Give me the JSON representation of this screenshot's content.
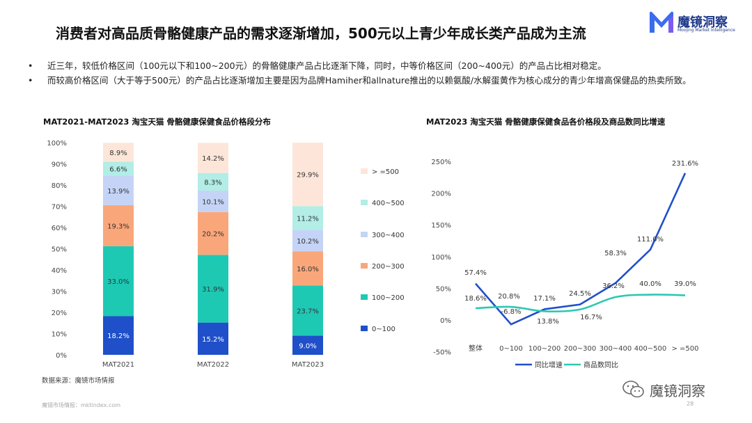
{
  "header": {
    "title": "消费者对高品质骨骼健康产品的需求逐渐增加，500元以上青少年成长类产品成为主流",
    "logo_cn": "魔镜洞察",
    "logo_en": "Moojing Market Intelligence"
  },
  "bullets": [
    "近三年，较低价格区间（100元以下和100~200元）的骨骼健康产品占比逐渐下降，同时，中等价格区间（200~400元）的产品占比相对稳定。",
    "而较高价格区间（大于等于500元）的产品占比逐渐增加主要是因为品牌Hamiher和allnature推出的以赖氨酸/水解蛋黄作为核心成分的青少年增高保健品的热卖所致。"
  ],
  "bullet_mark": "•",
  "source": "数据来源：魔镜市场情报",
  "footer": "魔镜市场情报：mktindex.com",
  "page_number": "28",
  "watermark": "魔镜洞察",
  "chart_data": [
    {
      "type": "bar",
      "stacked": true,
      "title": "MAT2021-MAT2023 淘宝天猫 骨骼健康保健食品价格段分布",
      "categories": [
        "MAT2021",
        "MAT2022",
        "MAT2023"
      ],
      "ylim": [
        0,
        100
      ],
      "yticks": [
        "0%",
        "10%",
        "20%",
        "30%",
        "40%",
        "50%",
        "60%",
        "70%",
        "80%",
        "90%",
        "100%"
      ],
      "legend_position": "right",
      "series": [
        {
          "name": "0~100",
          "color": "#1f4fc9",
          "values": [
            18.2,
            15.2,
            9.0
          ],
          "labels": [
            "18.2%",
            "15.2%",
            "9.0%"
          ]
        },
        {
          "name": "100~200",
          "color": "#1ec9b4",
          "values": [
            33.0,
            31.9,
            23.7
          ],
          "labels": [
            "33.0%",
            "31.9%",
            "23.7%"
          ]
        },
        {
          "name": "200~300",
          "color": "#f9a77a",
          "values": [
            19.3,
            20.2,
            16.0
          ],
          "labels": [
            "19.3%",
            "20.2%",
            "16.0%"
          ]
        },
        {
          "name": "300~400",
          "color": "#c5d4f6",
          "values": [
            13.9,
            10.1,
            10.2
          ],
          "labels": [
            "13.9%",
            "10.1%",
            "10.2%"
          ]
        },
        {
          "name": "400~500",
          "color": "#b2ede6",
          "values": [
            6.6,
            8.3,
            11.2
          ],
          "labels": [
            "6.6%",
            "8.3%",
            "11.2%"
          ]
        },
        {
          "name": ">=500",
          "display_name": "> =500",
          "color": "#fde6d9",
          "values": [
            8.9,
            14.2,
            29.9
          ],
          "labels": [
            "8.9%",
            "14.2%",
            "29.9%"
          ]
        }
      ]
    },
    {
      "type": "line",
      "title": "MAT2023 淘宝天猫 骨骼健康保健食品各价格段及商品数同比增速",
      "categories": [
        "整体",
        "0~100",
        "100~200",
        "200~300",
        "300~400",
        "400~500",
        "> =500"
      ],
      "ylim": [
        -50,
        250
      ],
      "yticks": [
        "-50%",
        "0%",
        "50%",
        "100%",
        "150%",
        "200%",
        "250%"
      ],
      "ytick_values": [
        -50,
        0,
        50,
        100,
        150,
        200,
        250
      ],
      "legend_position": "bottom",
      "series": [
        {
          "name": "同比增速",
          "color": "#1f4fc9",
          "values": [
            57.4,
            -6.8,
            17.1,
            24.5,
            58.3,
            111.0,
            231.6
          ],
          "labels": [
            "57.4%",
            "-6.8%",
            "17.1%",
            "24.5%",
            "58.3%",
            "111.0%",
            "231.6%"
          ]
        },
        {
          "name": "商品数同比",
          "color": "#2cc8b4",
          "values": [
            18.6,
            20.8,
            13.8,
            16.7,
            36.2,
            40.0,
            39.0
          ],
          "labels": [
            "18.6%",
            "20.8%",
            "13.8%",
            "16.7%",
            "36.2%",
            "40.0%",
            "39.0%"
          ]
        }
      ]
    }
  ]
}
